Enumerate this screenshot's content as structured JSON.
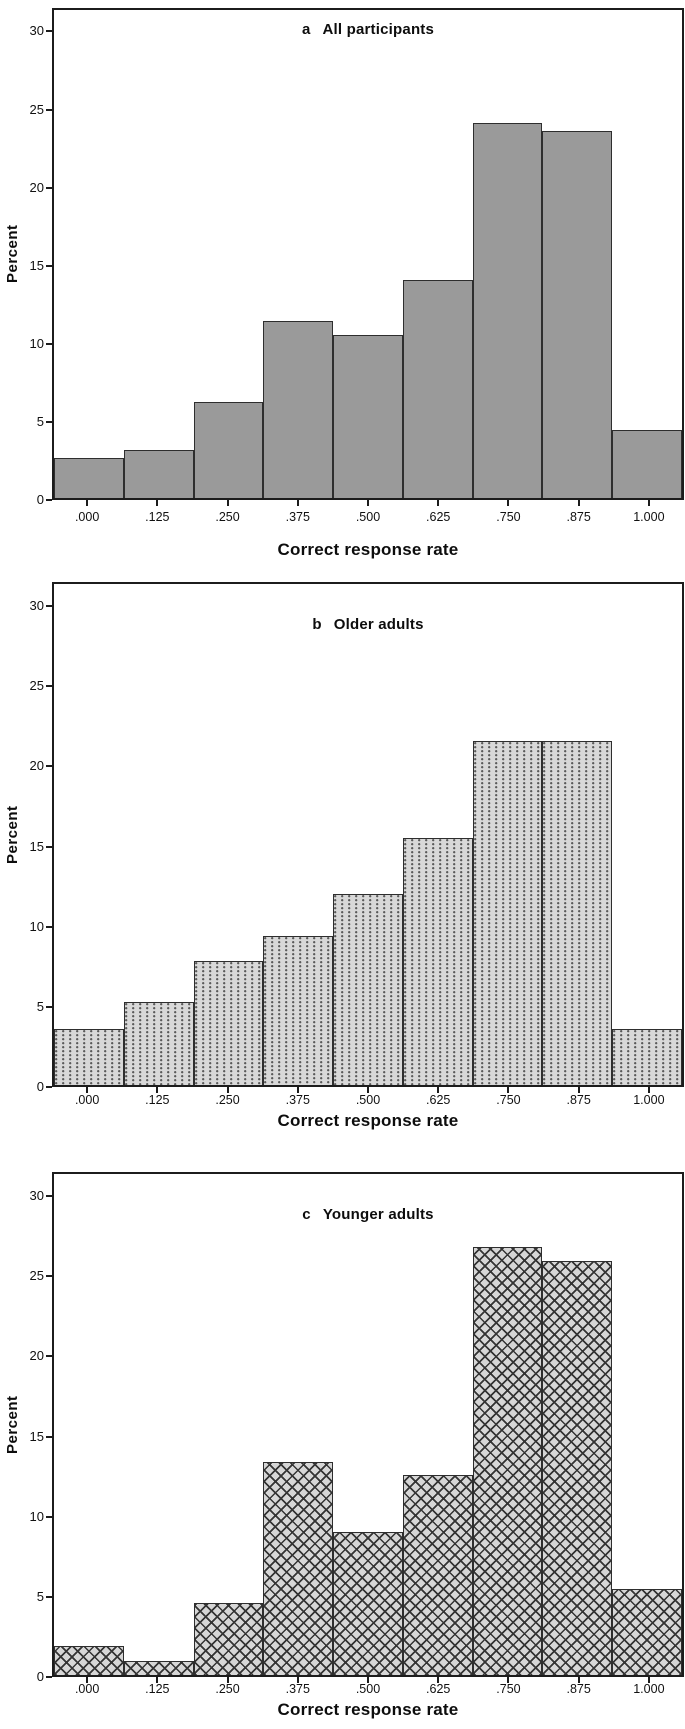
{
  "figure": {
    "description": "Three stacked histograms of correct response rate",
    "background": "#ffffff"
  },
  "colors": {
    "frame": "#1c1c1c",
    "bar_border": "#2e2e2e",
    "solid_fill": "#9a9a9a",
    "pattern_base": "#d8d8d8",
    "pattern_dark": "#3a3a3a",
    "text": "#111111"
  },
  "chart_data": [
    {
      "type": "bar",
      "panel_label": "a",
      "title": "All participants",
      "fill_style": "solid",
      "xlabel": "Correct response rate",
      "ylabel": "Percent",
      "categories": [
        ".000",
        ".125",
        ".250",
        ".375",
        ".500",
        ".625",
        ".750",
        ".875",
        "1.000"
      ],
      "values": [
        2.6,
        3.1,
        6.2,
        11.4,
        10.5,
        14.1,
        24.2,
        23.7,
        4.4
      ],
      "yticks": [
        0,
        5,
        10,
        15,
        20,
        25,
        30
      ],
      "ylim": [
        0,
        31.5
      ],
      "bin_width": 0.125,
      "grid": false,
      "legend": "none"
    },
    {
      "type": "bar",
      "panel_label": "b",
      "title": "Older adults",
      "fill_style": "dotted",
      "xlabel": "Correct response rate",
      "ylabel": "Percent",
      "categories": [
        ".000",
        ".125",
        ".250",
        ".375",
        ".500",
        ".625",
        ".750",
        ".875",
        "1.000"
      ],
      "values": [
        3.5,
        5.2,
        7.8,
        9.4,
        12.0,
        15.5,
        21.6,
        21.6,
        3.5
      ],
      "yticks": [
        0,
        5,
        10,
        15,
        20,
        25,
        30
      ],
      "ylim": [
        0,
        31.5
      ],
      "bin_width": 0.125,
      "grid": false,
      "legend": "none"
    },
    {
      "type": "bar",
      "panel_label": "c",
      "title": "Younger adults",
      "fill_style": "crosshatch",
      "xlabel": "Correct response rate",
      "ylabel": "Percent",
      "categories": [
        ".000",
        ".125",
        ".250",
        ".375",
        ".500",
        ".625",
        ".750",
        ".875",
        "1.000"
      ],
      "values": [
        1.8,
        0.9,
        4.5,
        13.4,
        9.0,
        12.6,
        26.9,
        26.0,
        5.4
      ],
      "yticks": [
        0,
        5,
        10,
        15,
        20,
        25,
        30
      ],
      "ylim": [
        0,
        31.5
      ],
      "bin_width": 0.125,
      "grid": false,
      "legend": "none"
    }
  ]
}
